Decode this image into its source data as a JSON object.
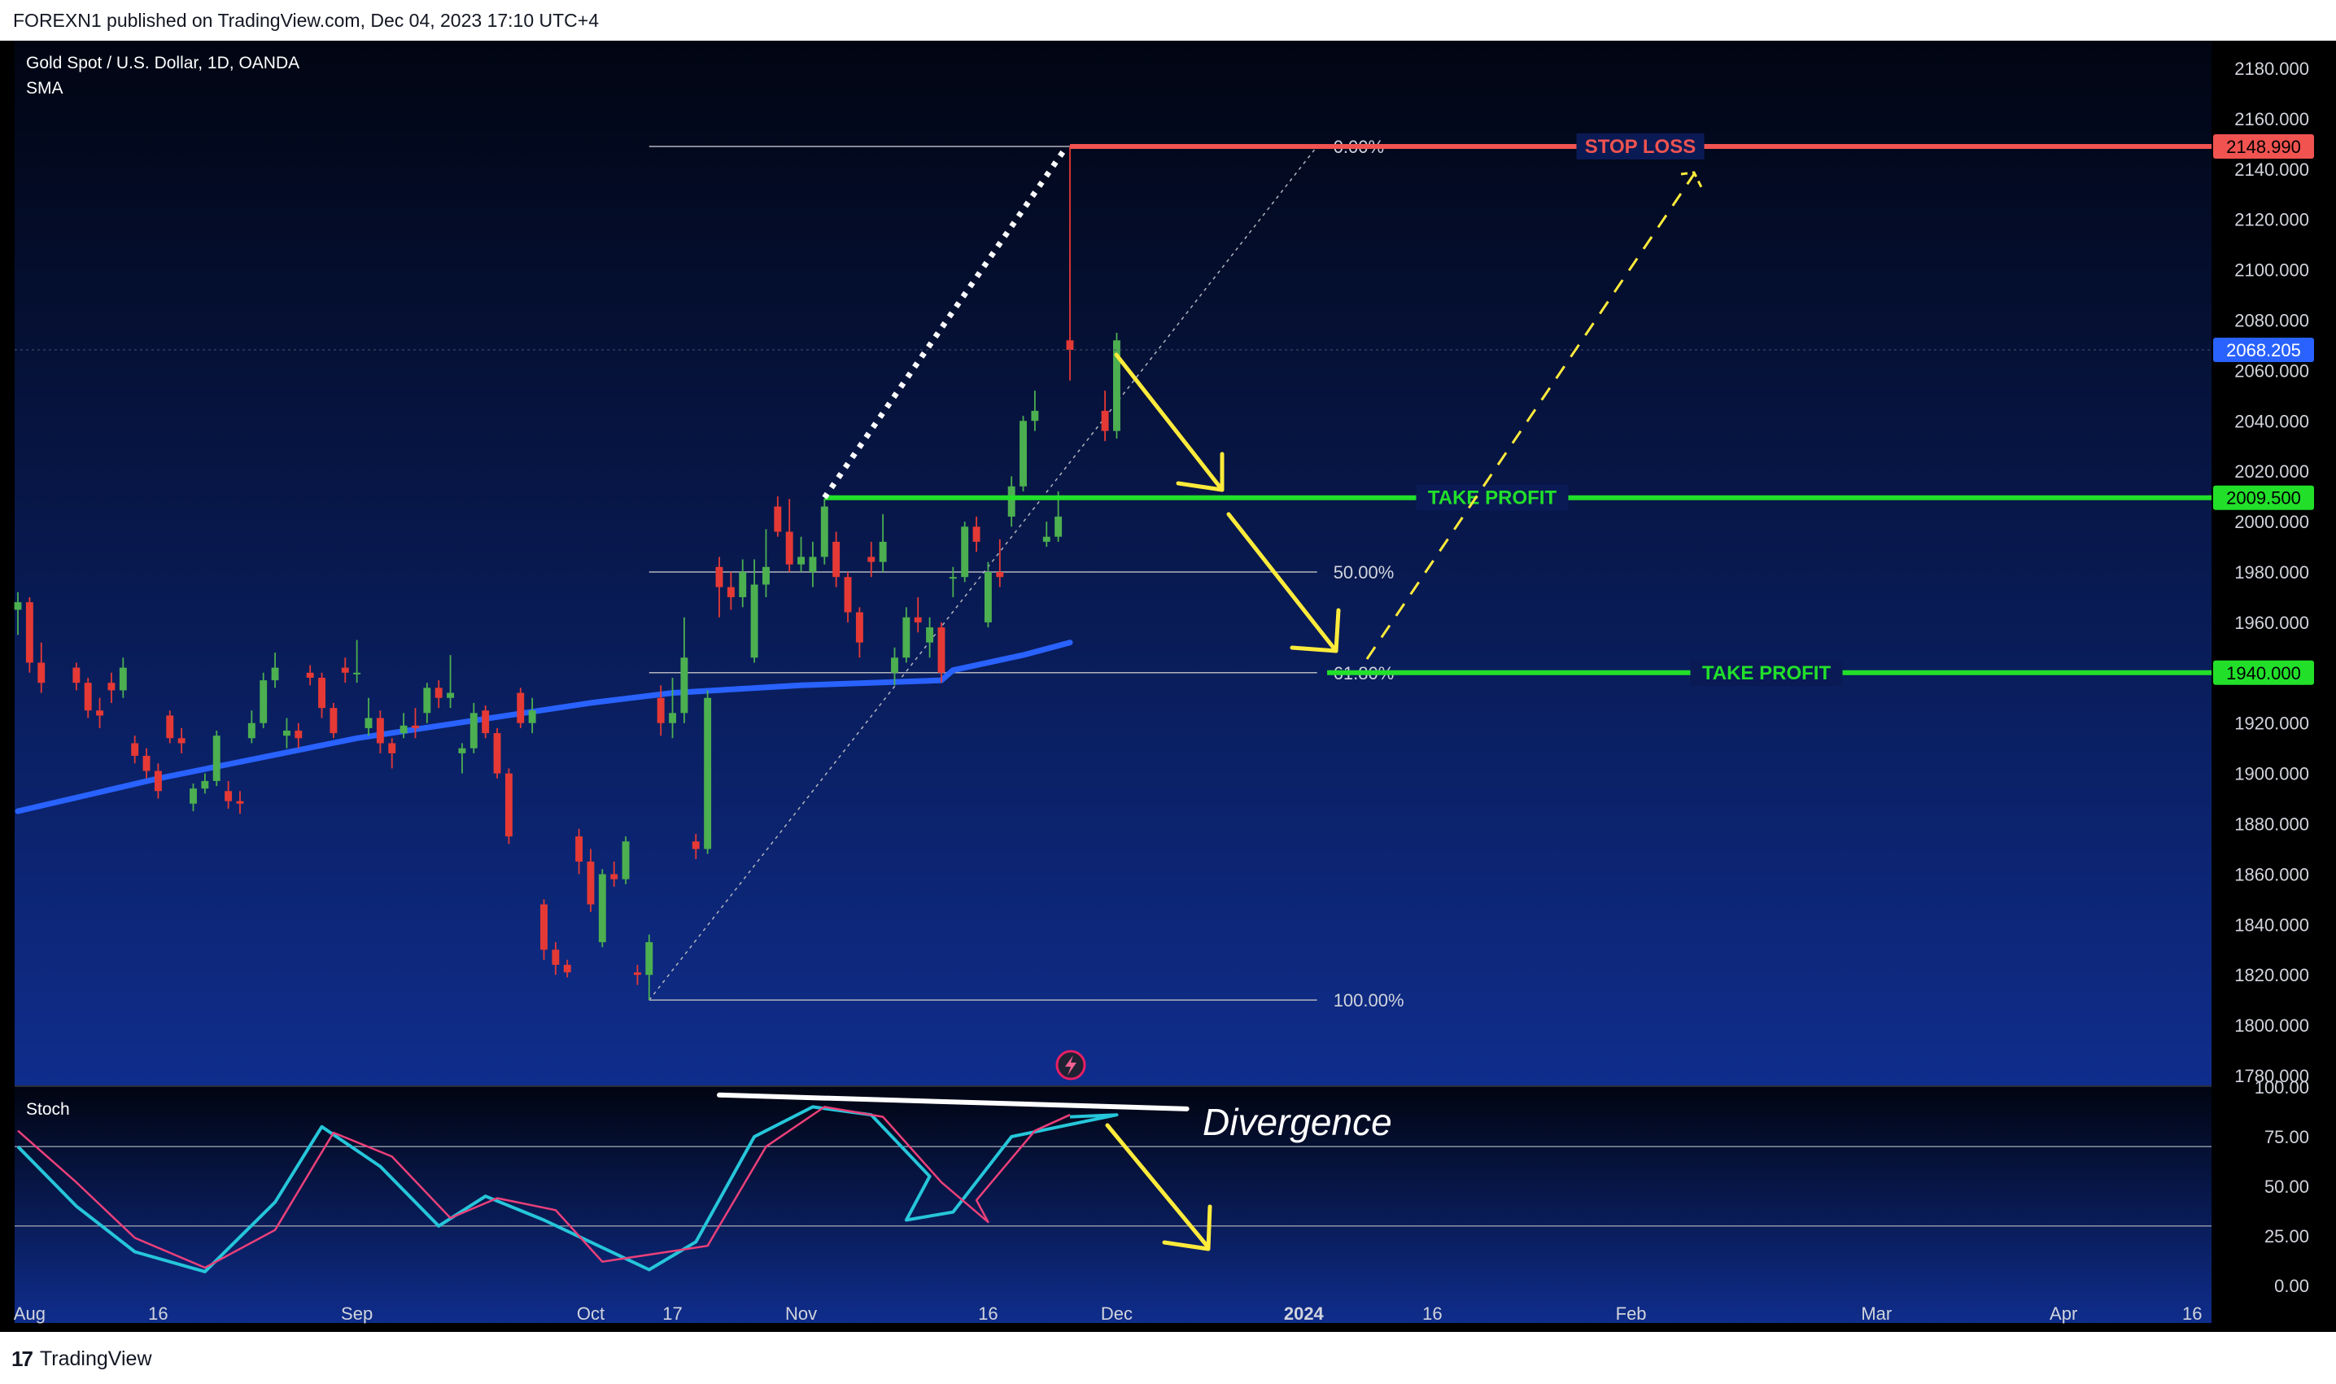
{
  "header": {
    "published": "FOREXN1 published on TradingView.com, Dec 04, 2023 17:10 UTC+4"
  },
  "legend": {
    "symbol": "Gold Spot / U.S. Dollar, 1D, OANDA",
    "indicator": "SMA"
  },
  "footer": {
    "brand": "TradingView"
  },
  "colors": {
    "bg_top": "#010512",
    "bg_bottom": "#0f2d8c",
    "up": "#4caf50",
    "down": "#e53935",
    "sma": "#2962ff",
    "stop": "#f05350",
    "target": "#22e02a",
    "arrow": "#ffeb3b",
    "k": "#26c6da",
    "d": "#ec407a"
  },
  "chart_data": [
    {
      "type": "candlestick",
      "title": "Gold Spot / U.S. Dollar, 1D, OANDA",
      "indicator": "SMA",
      "y_range": [
        1780,
        2180
      ],
      "y_ticks": [
        1780,
        1800,
        1820,
        1840,
        1860,
        1880,
        1900,
        1920,
        1940,
        1960,
        1980,
        2000,
        2020,
        2040,
        2060,
        2080,
        2100,
        2120,
        2140,
        2160,
        2180
      ],
      "y_tick_labels": [
        "1780.000",
        "1800.000",
        "1820.000",
        "1840.000",
        "1860.000",
        "1880.000",
        "1900.000",
        "1920.000",
        "1940.000",
        "1960.000",
        "1980.000",
        "2000.000",
        "2020.000",
        "2040.000",
        "2060.000",
        "2080.000",
        "2100.000",
        "2120.000",
        "2140.000",
        "2160.000",
        "2180.000"
      ],
      "x_labels": [
        "Aug",
        "16",
        "Sep",
        "Oct",
        "17",
        "Nov",
        "16",
        "Dec",
        "2024",
        "16",
        "Feb",
        "Mar",
        "Apr",
        "16"
      ],
      "x_label_dates": [
        "2023-08-01",
        "2023-08-16",
        "2023-09-01",
        "2023-10-01",
        "2023-10-17",
        "2023-11-01",
        "2023-11-16",
        "2023-12-01",
        "2024-01-01",
        "2024-01-16",
        "2024-02-01",
        "2024-03-01",
        "2024-04-01",
        "2024-04-16"
      ],
      "candles": [
        [
          "2023-07-31",
          1965,
          1972,
          1955,
          1968
        ],
        [
          "2023-08-01",
          1968,
          1970,
          1940,
          1944
        ],
        [
          "2023-08-02",
          1944,
          1952,
          1932,
          1936
        ],
        [
          "2023-08-03",
          1936,
          1940,
          1928,
          1933
        ],
        [
          "2023-08-04",
          1933,
          1946,
          1930,
          1942
        ],
        [
          "2023-08-07",
          1942,
          1944,
          1933,
          1936
        ],
        [
          "2023-08-08",
          1936,
          1938,
          1922,
          1925
        ],
        [
          "2023-08-09",
          1925,
          1930,
          1918,
          1923
        ],
        [
          "2023-08-10",
          1923,
          1925,
          1912,
          1914
        ],
        [
          "2023-08-11",
          1914,
          1918,
          1908,
          1912
        ],
        [
          "2023-08-14",
          1912,
          1915,
          1904,
          1907
        ],
        [
          "2023-08-15",
          1907,
          1910,
          1898,
          1901
        ],
        [
          "2023-08-16",
          1901,
          1904,
          1890,
          1893
        ],
        [
          "2023-08-17",
          1893,
          1897,
          1886,
          1889
        ],
        [
          "2023-08-18",
          1889,
          1893,
          1884,
          1888
        ],
        [
          "2023-08-21",
          1888,
          1896,
          1885,
          1894
        ],
        [
          "2023-08-22",
          1894,
          1900,
          1892,
          1897
        ],
        [
          "2023-08-23",
          1897,
          1917,
          1895,
          1915
        ],
        [
          "2023-08-24",
          1915,
          1922,
          1910,
          1917
        ],
        [
          "2023-08-25",
          1917,
          1920,
          1910,
          1914
        ],
        [
          "2023-08-28",
          1914,
          1925,
          1912,
          1920
        ],
        [
          "2023-08-29",
          1920,
          1940,
          1918,
          1937
        ],
        [
          "2023-08-30",
          1937,
          1948,
          1934,
          1942
        ],
        [
          "2023-08-31",
          1942,
          1946,
          1936,
          1940
        ],
        [
          "2023-09-01",
          1940,
          1953,
          1936,
          1940
        ],
        [
          "2023-09-04",
          1940,
          1943,
          1935,
          1938
        ],
        [
          "2023-09-05",
          1938,
          1940,
          1922,
          1926
        ],
        [
          "2023-09-06",
          1926,
          1928,
          1914,
          1916
        ],
        [
          "2023-09-07",
          1916,
          1924,
          1914,
          1919
        ],
        [
          "2023-09-08",
          1919,
          1926,
          1914,
          1918
        ],
        [
          "2023-09-11",
          1918,
          1930,
          1915,
          1922
        ],
        [
          "2023-09-12",
          1922,
          1925,
          1908,
          1912
        ],
        [
          "2023-09-13",
          1912,
          1914,
          1902,
          1908
        ],
        [
          "2023-09-14",
          1908,
          1912,
          1900,
          1910
        ],
        [
          "2023-09-15",
          1910,
          1928,
          1908,
          1924
        ],
        [
          "2023-09-18",
          1924,
          1936,
          1920,
          1934
        ],
        [
          "2023-09-19",
          1934,
          1937,
          1926,
          1930
        ],
        [
          "2023-09-20",
          1930,
          1947,
          1926,
          1932
        ],
        [
          "2023-09-21",
          1932,
          1934,
          1918,
          1920
        ],
        [
          "2023-09-22",
          1920,
          1930,
          1916,
          1925
        ],
        [
          "2023-09-25",
          1925,
          1927,
          1914,
          1916
        ],
        [
          "2023-09-26",
          1916,
          1918,
          1898,
          1900
        ],
        [
          "2023-09-27",
          1900,
          1902,
          1872,
          1875
        ],
        [
          "2023-09-28",
          1875,
          1878,
          1860,
          1865
        ],
        [
          "2023-09-29",
          1865,
          1870,
          1845,
          1848
        ],
        [
          "2023-10-02",
          1848,
          1850,
          1826,
          1830
        ],
        [
          "2023-10-03",
          1830,
          1833,
          1820,
          1824
        ],
        [
          "2023-10-04",
          1824,
          1826,
          1819,
          1821
        ],
        [
          "2023-10-05",
          1821,
          1824,
          1816,
          1820
        ],
        [
          "2023-10-06",
          1820,
          1836,
          1810,
          1833
        ],
        [
          "2023-10-09",
          1833,
          1862,
          1831,
          1860
        ],
        [
          "2023-10-10",
          1860,
          1865,
          1855,
          1858
        ],
        [
          "2023-10-11",
          1858,
          1875,
          1856,
          1873
        ],
        [
          "2023-10-12",
          1873,
          1876,
          1866,
          1870
        ],
        [
          "2023-10-13",
          1870,
          1933,
          1868,
          1930
        ],
        [
          "2023-10-16",
          1930,
          1935,
          1915,
          1920
        ],
        [
          "2023-10-17",
          1920,
          1938,
          1914,
          1924
        ],
        [
          "2023-10-18",
          1924,
          1962,
          1920,
          1946
        ],
        [
          "2023-10-19",
          1946,
          1985,
          1944,
          1975
        ],
        [
          "2023-10-20",
          1975,
          1997,
          1970,
          1982
        ],
        [
          "2023-10-23",
          1982,
          1986,
          1962,
          1974
        ],
        [
          "2023-10-24",
          1974,
          1980,
          1965,
          1970
        ],
        [
          "2023-10-25",
          1970,
          1985,
          1966,
          1980
        ],
        [
          "2023-10-26",
          1980,
          1992,
          1974,
          1986
        ],
        [
          "2023-10-27",
          1986,
          2009,
          1983,
          2006
        ],
        [
          "2023-10-30",
          2006,
          2010,
          1994,
          1996
        ],
        [
          "2023-10-31",
          1996,
          2009,
          1980,
          1983
        ],
        [
          "2023-11-01",
          1983,
          1994,
          1980,
          1986
        ],
        [
          "2023-11-02",
          1986,
          1992,
          1978,
          1984
        ],
        [
          "2023-11-03",
          1984,
          2003,
          1980,
          1992
        ],
        [
          "2023-11-06",
          1992,
          1996,
          1974,
          1978
        ],
        [
          "2023-11-07",
          1978,
          1980,
          1960,
          1964
        ],
        [
          "2023-11-08",
          1964,
          1966,
          1946,
          1952
        ],
        [
          "2023-11-09",
          1952,
          1962,
          1946,
          1958
        ],
        [
          "2023-11-10",
          1958,
          1960,
          1936,
          1940
        ],
        [
          "2023-11-13",
          1940,
          1950,
          1935,
          1946
        ],
        [
          "2023-11-14",
          1946,
          1966,
          1944,
          1962
        ],
        [
          "2023-11-15",
          1962,
          1970,
          1956,
          1960
        ],
        [
          "2023-11-16",
          1960,
          1984,
          1958,
          1980
        ],
        [
          "2023-11-17",
          1980,
          1993,
          1974,
          1978
        ],
        [
          "2023-11-20",
          1978,
          1982,
          1970,
          1978
        ],
        [
          "2023-11-21",
          1978,
          2000,
          1976,
          1998
        ],
        [
          "2023-11-22",
          1998,
          2002,
          1988,
          1992
        ],
        [
          "2023-11-23",
          1992,
          2000,
          1990,
          1994
        ],
        [
          "2023-11-24",
          1994,
          2012,
          1992,
          2002
        ],
        [
          "2023-11-27",
          2002,
          2018,
          1998,
          2014
        ],
        [
          "2023-11-28",
          2014,
          2042,
          2012,
          2040
        ],
        [
          "2023-11-29",
          2040,
          2052,
          2036,
          2044
        ],
        [
          "2023-11-30",
          2044,
          2052,
          2032,
          2036
        ],
        [
          "2023-12-01",
          2036,
          2075,
          2033,
          2072
        ],
        [
          "2023-12-04",
          2072,
          2148.99,
          2056,
          2068.205
        ]
      ],
      "sma": [
        [
          "2023-07-31",
          1885
        ],
        [
          "2023-08-16",
          1898
        ],
        [
          "2023-09-01",
          1914
        ],
        [
          "2023-09-16",
          1921
        ],
        [
          "2023-10-01",
          1928
        ],
        [
          "2023-10-17",
          1932
        ],
        [
          "2023-11-01",
          1935
        ],
        [
          "2023-11-10",
          1937
        ],
        [
          "2023-11-20",
          1941
        ],
        [
          "2023-11-28",
          1947
        ],
        [
          "2023-12-04",
          1952
        ]
      ],
      "fibonacci": [
        {
          "level": "0.00%",
          "price": 2148.99
        },
        {
          "level": "50.00%",
          "price": 1980
        },
        {
          "level": "61.80%",
          "price": 1940
        },
        {
          "level": "100.00%",
          "price": 1810
        }
      ],
      "annotations": [
        {
          "label": "STOP LOSS",
          "price": 2148.99,
          "tag": "2148.990"
        },
        {
          "label": "TAKE PROFIT",
          "price": 2009.5,
          "tag": "2009.500"
        },
        {
          "label": "TAKE PROFIT",
          "price": 1940.0,
          "tag": "1940.000"
        }
      ],
      "last_price": "2068.205"
    },
    {
      "type": "line",
      "title": "Stoch",
      "y_range": [
        0,
        100
      ],
      "y_ticks": [
        0,
        25,
        50,
        75,
        100
      ],
      "y_tick_labels": [
        "0.00",
        "25.00",
        "50.00",
        "75.00",
        "100.00"
      ],
      "bands": [
        30,
        70
      ],
      "series": [
        {
          "values": [
            [
              "2023-07-31",
              70
            ],
            [
              "2023-08-07",
              40
            ],
            [
              "2023-08-14",
              17
            ],
            [
              "2023-08-22",
              7
            ],
            [
              "2023-08-30",
              42
            ],
            [
              "2023-09-05",
              80
            ],
            [
              "2023-09-12",
              60
            ],
            [
              "2023-09-19",
              30
            ],
            [
              "2023-09-25",
              45
            ],
            [
              "2023-10-02",
              33
            ],
            [
              "2023-10-06",
              8
            ],
            [
              "2023-10-12",
              22
            ],
            [
              "2023-10-19",
              75
            ],
            [
              "2023-10-26",
              90
            ],
            [
              "2023-11-02",
              86
            ],
            [
              "2023-11-09",
              55
            ],
            [
              "2023-11-14",
              33
            ],
            [
              "2023-11-20",
              37
            ],
            [
              "2023-11-27",
              75
            ],
            [
              "2023-12-01",
              86
            ],
            [
              "2023-12-04",
              85
            ]
          ]
        },
        {
          "values": [
            [
              "2023-07-31",
              78
            ],
            [
              "2023-08-07",
              52
            ],
            [
              "2023-08-14",
              24
            ],
            [
              "2023-08-22",
              9
            ],
            [
              "2023-08-30",
              28
            ],
            [
              "2023-09-06",
              77
            ],
            [
              "2023-09-13",
              65
            ],
            [
              "2023-09-20",
              34
            ],
            [
              "2023-09-26",
              44
            ],
            [
              "2023-10-03",
              38
            ],
            [
              "2023-10-09",
              12
            ],
            [
              "2023-10-15",
              20
            ],
            [
              "2023-10-22",
              70
            ],
            [
              "2023-10-29",
              90
            ],
            [
              "2023-11-05",
              85
            ],
            [
              "2023-11-11",
              52
            ],
            [
              "2023-11-16",
              32
            ],
            [
              "2023-11-22",
              43
            ],
            [
              "2023-11-29",
              78
            ],
            [
              "2023-12-04",
              86
            ]
          ]
        }
      ],
      "annotations": [
        {
          "label": "Divergence"
        }
      ]
    }
  ]
}
